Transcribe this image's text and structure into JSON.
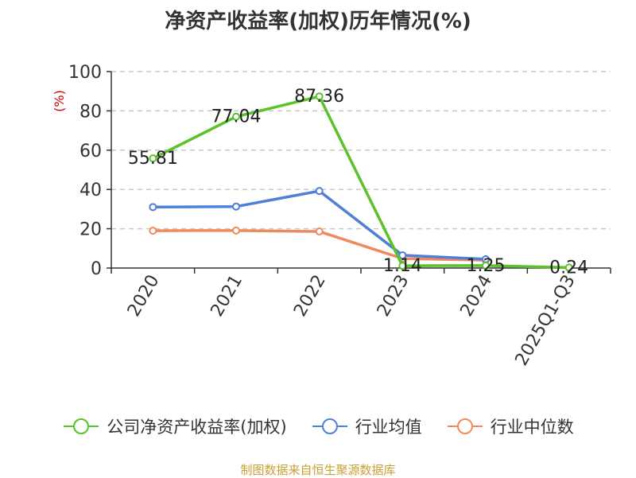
{
  "chart_data": {
    "type": "line",
    "title": "净资产收益率(加权)历年情况(%)",
    "ylabel": "(%)",
    "ylim": [
      0,
      100
    ],
    "yticks": [
      0,
      20,
      40,
      60,
      80,
      100
    ],
    "grid": true,
    "legend_position": "bottom",
    "categories": [
      "2020",
      "2021",
      "2022",
      "2023",
      "2024",
      "2025Q1-Q3"
    ],
    "series": [
      {
        "name": "公司净资产收益率(加权)",
        "color": "#5bc22a",
        "values": [
          55.81,
          77.04,
          87.36,
          1.14,
          1.25,
          0.24
        ],
        "labels": [
          "55.81",
          "77.04",
          "87.36",
          "1.14",
          "1.25",
          "0.24"
        ]
      },
      {
        "name": "行业均值",
        "color": "#4f7fd6",
        "values": [
          31.0,
          31.3,
          39.2,
          6.5,
          4.5,
          null
        ]
      },
      {
        "name": "行业中位数",
        "color": "#f08a5d",
        "values": [
          19.0,
          19.1,
          18.6,
          4.8,
          4.0,
          null
        ]
      }
    ]
  },
  "footer": "制图数据来自恒生聚源数据库"
}
